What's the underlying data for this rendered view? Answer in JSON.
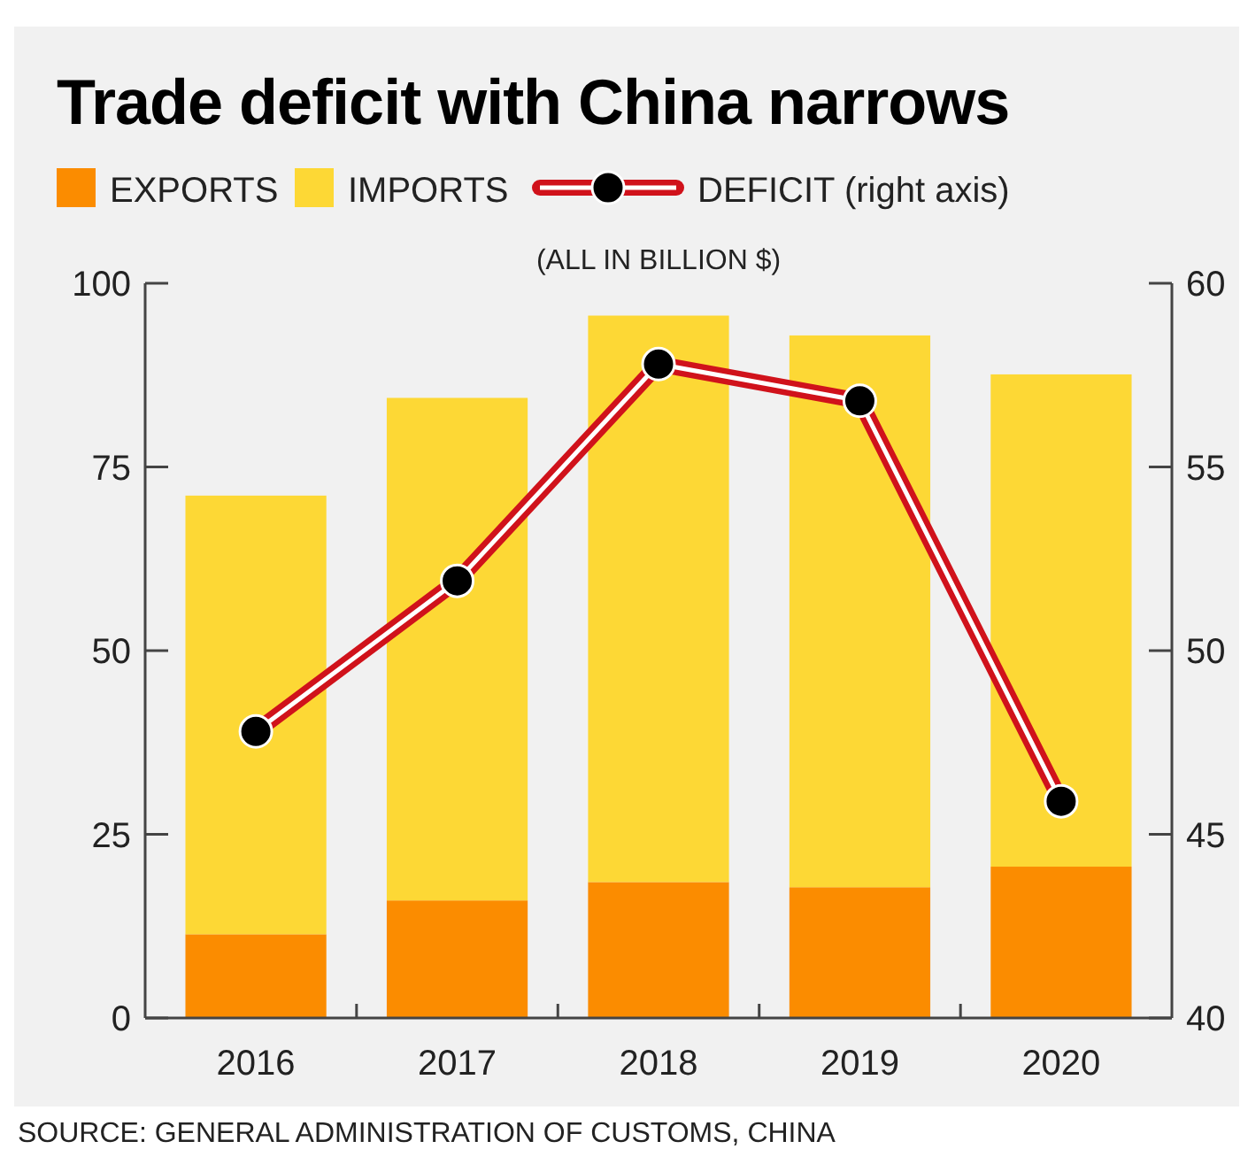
{
  "chart_data": {
    "type": "bar",
    "title": "Trade deficit with China narrows",
    "subtitle": "(ALL IN BILLION $)",
    "categories": [
      "2016",
      "2017",
      "2018",
      "2019",
      "2020"
    ],
    "stacked": true,
    "series": [
      {
        "name": "EXPORTS",
        "color": "#fb8c00",
        "values": [
          11.4,
          16.0,
          18.5,
          17.8,
          20.6
        ]
      },
      {
        "name": "IMPORTS",
        "color": "#fdd835",
        "values": [
          59.7,
          68.4,
          77.1,
          75.1,
          67.0
        ]
      },
      {
        "name": "DEFICIT (right axis)",
        "type": "line",
        "axis": "y2",
        "color": "#d0121b",
        "values": [
          47.8,
          51.9,
          57.8,
          56.8,
          45.9
        ]
      }
    ],
    "ylim": [
      0,
      100
    ],
    "yticks": [
      0,
      25,
      50,
      75,
      100
    ],
    "y2lim": [
      40,
      60
    ],
    "y2ticks": [
      40,
      45,
      50,
      55,
      60
    ],
    "legend": "top",
    "marker": "circle",
    "line_style": "solid",
    "annotations": [
      "SOURCE: GENERAL ADMINISTRATION OF CUSTOMS, CHINA"
    ]
  }
}
